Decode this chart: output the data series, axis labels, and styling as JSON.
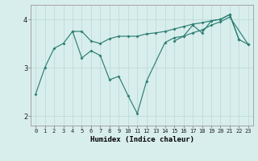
{
  "xlabel": "Humidex (Indice chaleur)",
  "x": [
    0,
    1,
    2,
    3,
    4,
    5,
    6,
    7,
    8,
    9,
    10,
    11,
    12,
    13,
    14,
    15,
    16,
    17,
    18,
    19,
    20,
    21,
    22,
    23
  ],
  "line1": [
    2.45,
    3.0,
    3.4,
    3.5,
    3.75,
    3.75,
    3.55,
    3.5,
    3.6,
    3.65,
    3.65,
    3.65,
    3.7,
    3.72,
    3.75,
    3.8,
    3.85,
    3.9,
    3.93,
    3.97,
    4.0,
    4.1,
    3.58,
    3.48
  ],
  "line2": [
    null,
    null,
    null,
    null,
    3.75,
    3.2,
    3.35,
    3.25,
    2.75,
    2.82,
    2.42,
    2.05,
    2.72,
    null,
    3.52,
    3.62,
    3.65,
    3.88,
    3.72,
    3.97,
    4.0,
    4.1,
    3.58,
    null
  ],
  "line3": [
    null,
    null,
    null,
    null,
    null,
    null,
    null,
    null,
    null,
    null,
    null,
    null,
    null,
    null,
    null,
    3.55,
    3.65,
    3.72,
    3.78,
    3.88,
    3.95,
    4.05,
    null,
    3.48
  ],
  "color": "#2d7f74",
  "bg_color": "#d8eeec",
  "grid_color": "#b8d8d5",
  "ylim": [
    1.8,
    4.3
  ],
  "xlim": [
    -0.5,
    23.5
  ],
  "yticks": [
    2,
    3,
    4
  ],
  "xtick_labels": [
    "0",
    "1",
    "2",
    "3",
    "4",
    "5",
    "6",
    "7",
    "8",
    "9",
    "10",
    "11",
    "12",
    "13",
    "14",
    "15",
    "16",
    "17",
    "18",
    "19",
    "20",
    "21",
    "22",
    "23"
  ]
}
